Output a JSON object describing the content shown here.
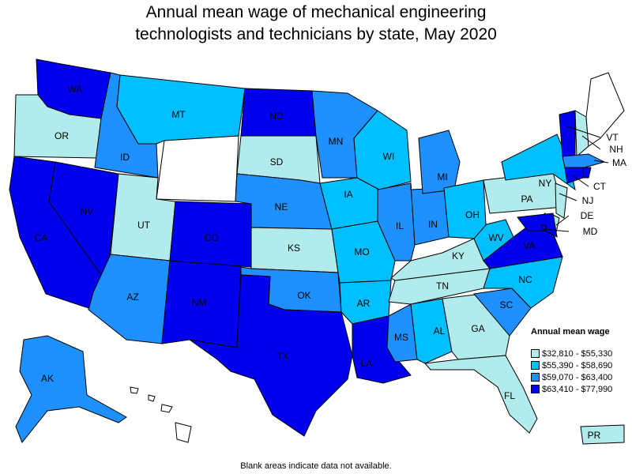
{
  "title_line1": "Annual mean wage of mechanical engineering",
  "title_line2": "technologists and technicians by state, May 2020",
  "legend": {
    "title": "Annual mean wage",
    "ranges": [
      {
        "label": "$32,810 - $55,330",
        "color": "#b2ebeb"
      },
      {
        "label": "$55,390 - $58,690",
        "color": "#00bfff"
      },
      {
        "label": "$59,070 - $63,400",
        "color": "#1e90ff"
      },
      {
        "label": "$63,410 - $77,990",
        "color": "#0000ee"
      }
    ]
  },
  "no_data_color": "#ffffff",
  "footnote": "Blank areas indicate data not available.",
  "chart_data": {
    "type": "choropleth",
    "states": {
      "WA": 3,
      "OR": 0,
      "CA": 3,
      "NV": 3,
      "ID": 2,
      "MT": 1,
      "WY": null,
      "UT": 0,
      "AZ": 2,
      "NM": 3,
      "CO": 3,
      "ND": 3,
      "SD": 0,
      "NE": 2,
      "KS": 0,
      "OK": 2,
      "TX": 3,
      "MN": 2,
      "IA": 1,
      "MO": 1,
      "AR": 1,
      "LA": 3,
      "WI": 1,
      "IL": 2,
      "MI": 2,
      "IN": 2,
      "OH": 1,
      "KY": 0,
      "TN": 0,
      "MS": 2,
      "AL": 1,
      "GA": 0,
      "FL": 0,
      "SC": 2,
      "NC": 1,
      "VA": 3,
      "WV": 1,
      "PA": 0,
      "NY": 1,
      "ME": null,
      "NH": 0,
      "VT": 3,
      "MA": 2,
      "CT": 3,
      "RI": 3,
      "NJ": 0,
      "DE": 0,
      "MD": 3,
      "DC": 3,
      "AK": 2,
      "HI": null,
      "PR": 0
    },
    "callouts": [
      "VT",
      "NH",
      "MA",
      "CT",
      "NJ",
      "DE",
      "MD"
    ]
  }
}
